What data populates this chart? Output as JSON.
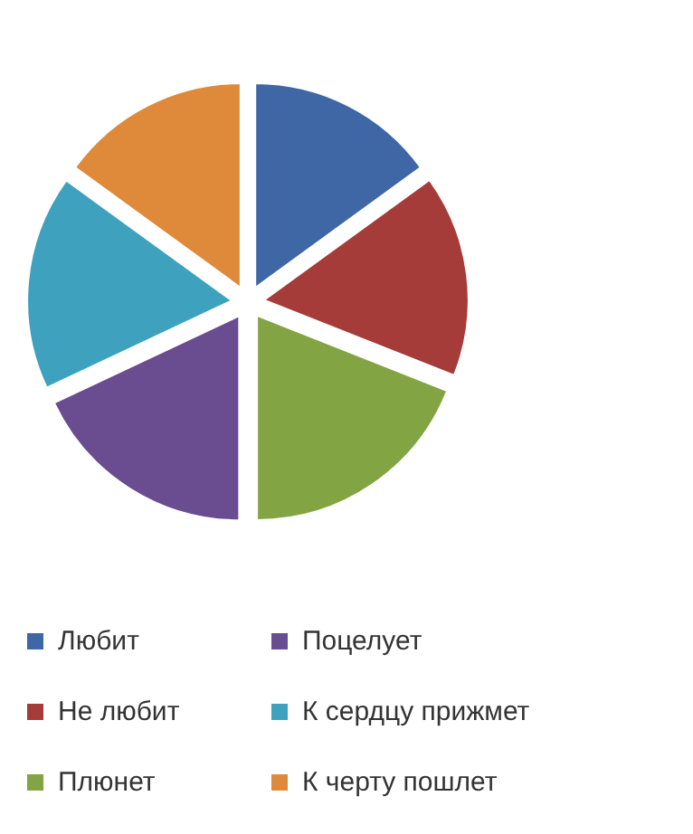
{
  "chart_data": {
    "type": "pie",
    "categories": [
      "Любит",
      "Не любит",
      "Плюнет",
      "Поцелует",
      "К сердцу прижмет",
      "К черту пошлет"
    ],
    "values": [
      15,
      16,
      19,
      18,
      17,
      15
    ],
    "colors": [
      "#3f67a6",
      "#a63c3a",
      "#83a443",
      "#6a4c91",
      "#3ea2bf",
      "#df8a3a"
    ],
    "legend": "bottom"
  }
}
